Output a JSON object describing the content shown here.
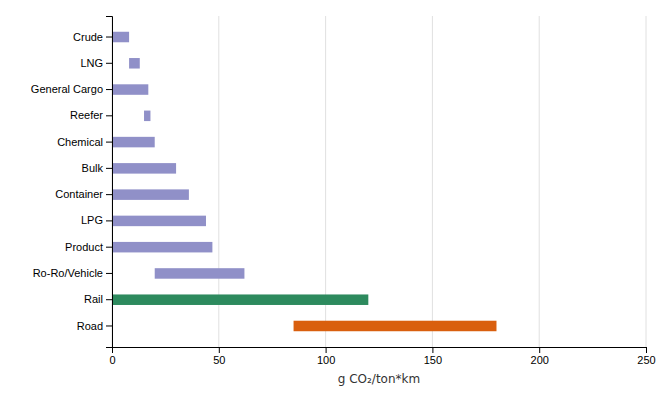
{
  "chart_data": {
    "type": "bar",
    "orientation": "horizontal",
    "categories": [
      "Road",
      "Rail",
      "Ro-Ro/Vehicle",
      "Product",
      "LPG",
      "Container",
      "Bulk",
      "Chemical",
      "Reefer",
      "General Cargo",
      "LNG",
      "Crude"
    ],
    "values": [
      [
        85,
        180
      ],
      [
        0,
        120
      ],
      [
        20,
        62
      ],
      [
        0,
        47
      ],
      [
        0,
        44
      ],
      [
        0,
        36
      ],
      [
        0,
        30
      ],
      [
        0,
        20
      ],
      [
        15,
        18
      ],
      [
        0,
        17
      ],
      [
        8,
        13
      ],
      [
        0,
        8
      ]
    ],
    "colors": [
      "#d95f0e",
      "#2d8a5e",
      "#9090c8",
      "#9090c8",
      "#9090c8",
      "#9090c8",
      "#9090c8",
      "#9090c8",
      "#9090c8",
      "#9090c8",
      "#9090c8",
      "#9090c8"
    ],
    "xlabel": "g CO₂/ton*km",
    "xlim": [
      0,
      250
    ],
    "xticks": [
      0,
      50,
      100,
      150,
      200,
      250
    ],
    "grid": true
  }
}
